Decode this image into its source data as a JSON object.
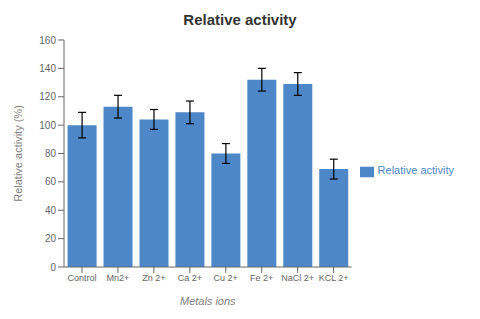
{
  "chart_data": {
    "type": "bar",
    "title": "Relative activity",
    "xlabel": "Metals ions",
    "ylabel": "Relative activity (%)",
    "categories": [
      "Control",
      "Mn2+",
      "Zn 2+",
      "Ca 2+",
      "Cu 2+",
      "Fe 2+",
      "NaCl 2+",
      "KCL 2+"
    ],
    "series": [
      {
        "name": "Relative activity",
        "color": "#4d87c7",
        "values": [
          100,
          113,
          104,
          109,
          80,
          132,
          129,
          69
        ],
        "errors": [
          9,
          8,
          7,
          8,
          7,
          8,
          8,
          7
        ]
      }
    ],
    "ylim": [
      0,
      160
    ],
    "yticks": [
      0,
      20,
      40,
      60,
      80,
      100,
      120,
      140,
      160
    ],
    "grid": false,
    "legend": "right"
  }
}
